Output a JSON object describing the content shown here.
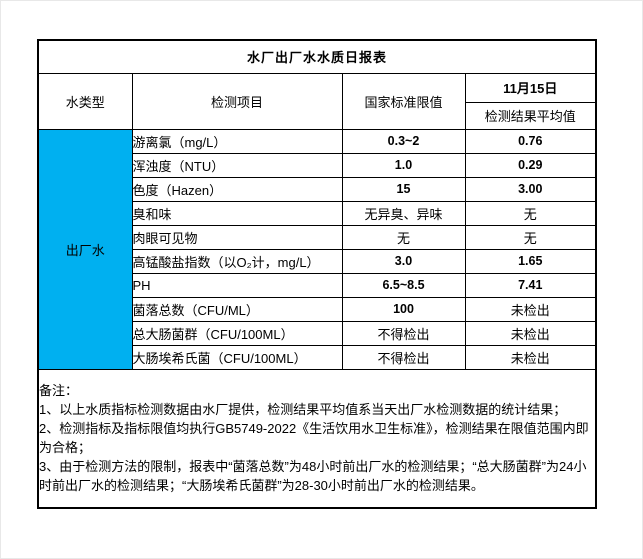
{
  "title": "水厂出厂水水质日报表",
  "header": {
    "water_type": "水类型",
    "test_item": "检测项目",
    "national_limit": "国家标准限值",
    "date": "11月15日",
    "result_avg": "检测结果平均值"
  },
  "water_type_value": "出厂水",
  "rows": [
    {
      "item": "游离氯（mg/L）",
      "limit": "0.3~2",
      "result": "0.76"
    },
    {
      "item": "浑浊度（NTU）",
      "limit": "1.0",
      "result": "0.29"
    },
    {
      "item": "色度（Hazen）",
      "limit": "15",
      "result": "3.00"
    },
    {
      "item": "臭和味",
      "limit": "无异臭、异味",
      "result": "无"
    },
    {
      "item": "肉眼可见物",
      "limit": "无",
      "result": "无"
    },
    {
      "item": "高锰酸盐指数（以O₂计，mg/L）",
      "limit": "3.0",
      "result": "1.65"
    },
    {
      "item": "PH",
      "limit": "6.5~8.5",
      "result": "7.41"
    },
    {
      "item": "菌落总数（CFU/ML）",
      "limit": "100",
      "result": "未检出"
    },
    {
      "item": "总大肠菌群（CFU/100ML）",
      "limit": "不得检出",
      "result": "未检出"
    },
    {
      "item": "大肠埃希氏菌（CFU/100ML）",
      "limit": "不得检出",
      "result": "未检出"
    }
  ],
  "notes": {
    "label": "备注：",
    "lines": [
      "1、以上水质指标检测数据由水厂提供，检测结果平均值系当天出厂水检测数据的统计结果；",
      "2、检测指标及指标限值均执行GB5749-2022《生活饮用水卫生标准》，检测结果在限值范围内即为合格；",
      "3、由于检测方法的限制，报表中“菌落总数”为48小时前出厂水的检测结果；“总大肠菌群”为24小时前出厂水的检测结果；“大肠埃希氏菌群”为28-30小时前出厂水的检测结果。"
    ]
  },
  "colors": {
    "highlight_blue": "#00B0F0",
    "border": "#000000",
    "background": "#FFFFFF"
  }
}
